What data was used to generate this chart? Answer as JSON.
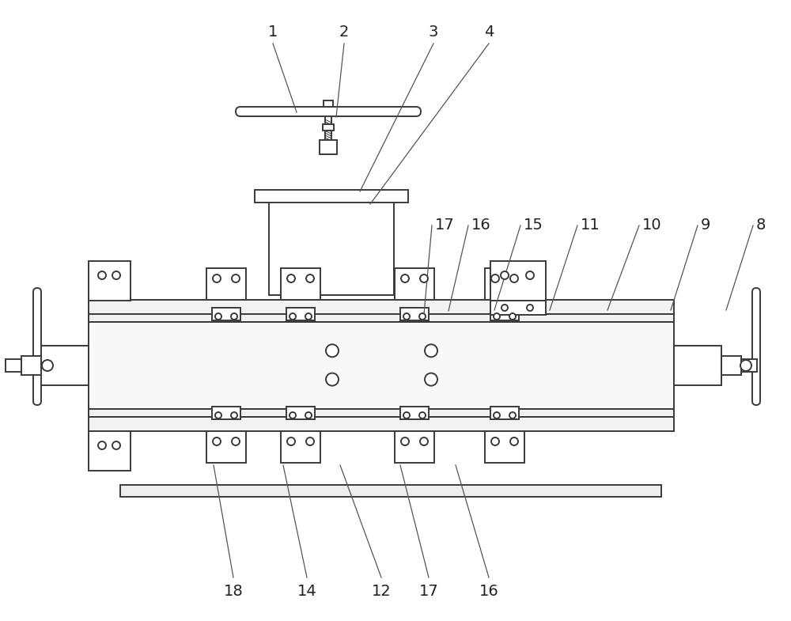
{
  "bg_color": "#ffffff",
  "line_color": "#3a3a3a",
  "label_color": "#222222",
  "figsize": [
    10.0,
    7.85
  ],
  "dpi": 100,
  "top_labels": [
    [
      "1",
      345,
      57,
      385,
      138
    ],
    [
      "2",
      435,
      57,
      430,
      175
    ],
    [
      "3",
      548,
      57,
      460,
      238
    ],
    [
      "4",
      618,
      57,
      468,
      252
    ]
  ],
  "right_labels": [
    [
      "16",
      594,
      280,
      574,
      303
    ],
    [
      "17",
      546,
      280,
      540,
      306
    ],
    [
      "15",
      660,
      280,
      620,
      305
    ],
    [
      "11",
      738,
      280,
      690,
      304
    ],
    [
      "10",
      812,
      280,
      762,
      304
    ],
    [
      "9",
      886,
      280,
      836,
      304
    ],
    [
      "8",
      956,
      280,
      906,
      304
    ]
  ],
  "bottom_labels": [
    [
      "18",
      302,
      722,
      270,
      530
    ],
    [
      "14",
      392,
      722,
      348,
      535
    ],
    [
      "12",
      490,
      722,
      426,
      532
    ],
    [
      "17",
      546,
      722,
      500,
      530
    ],
    [
      "16",
      622,
      722,
      572,
      530
    ]
  ]
}
